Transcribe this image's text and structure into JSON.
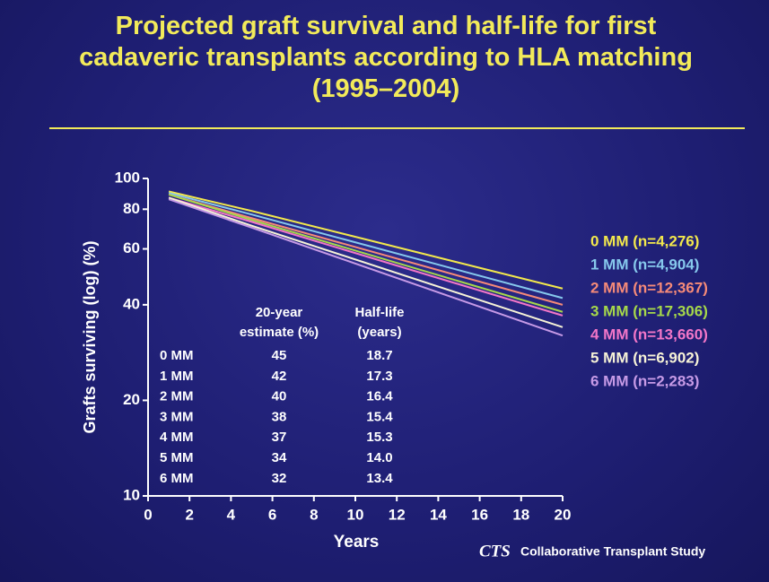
{
  "chart_data": {
    "type": "line",
    "title": "Projected graft survival and half-life for first cadaveric transplants according to HLA matching (1995–2004)",
    "x_label": "Years",
    "y_label": "Grafts surviving (log) (%)",
    "log_y": true,
    "x": [
      1,
      5,
      20
    ],
    "xlim": [
      0,
      20
    ],
    "xticks": [
      0,
      2,
      4,
      6,
      8,
      10,
      12,
      14,
      16,
      18,
      20
    ],
    "ylim": [
      10,
      100
    ],
    "yticks": [
      10,
      20,
      40,
      60,
      80,
      100
    ],
    "series": [
      {
        "name": "0 MM (n=4,276)",
        "color": "#f2e84c",
        "values": [
          91,
          79,
          45
        ]
      },
      {
        "name": "1 MM (n=4,904)",
        "color": "#86c8ec",
        "values": [
          90,
          77,
          42
        ]
      },
      {
        "name": "2 MM (n=12,367)",
        "color": "#f58a78",
        "values": [
          89,
          75,
          40
        ]
      },
      {
        "name": "3 MM (n=17,306)",
        "color": "#a6d84a",
        "values": [
          89,
          74,
          38
        ]
      },
      {
        "name": "4 MM (n=13,660)",
        "color": "#f276c8",
        "values": [
          87,
          73,
          37
        ]
      },
      {
        "name": "5 MM (n=6,902)",
        "color": "#f6f2d6",
        "values": [
          87,
          71,
          34
        ]
      },
      {
        "name": "6 MM (n=2,283)",
        "color": "#c69ae6",
        "values": [
          86,
          70,
          32
        ]
      }
    ],
    "table": {
      "columns": [
        "20-year estimate (%)",
        "Half-life (years)"
      ],
      "rows": [
        [
          "0 MM",
          "45",
          "18.7"
        ],
        [
          "1 MM",
          "42",
          "17.3"
        ],
        [
          "2 MM",
          "40",
          "16.4"
        ],
        [
          "3 MM",
          "38",
          "15.4"
        ],
        [
          "4 MM",
          "37",
          "15.3"
        ],
        [
          "5 MM",
          "34",
          "14.0"
        ],
        [
          "6 MM",
          "32",
          "13.4"
        ]
      ]
    },
    "source": {
      "abbr": "CTS",
      "text": "Collaborative Transplant Study"
    }
  }
}
